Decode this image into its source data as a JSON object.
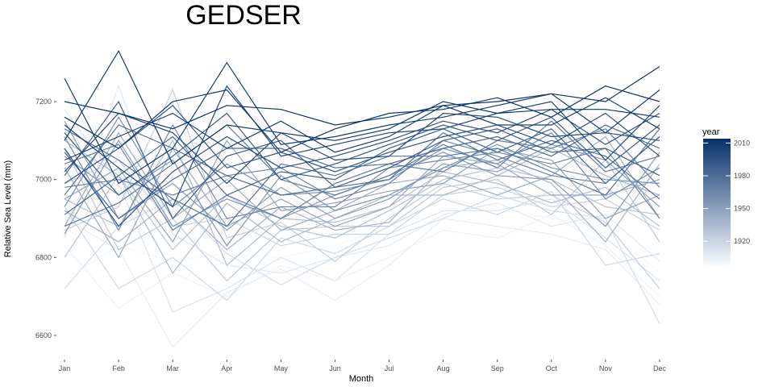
{
  "chart_data": {
    "type": "line",
    "title": "GEDSER",
    "xlabel": "Month",
    "ylabel": "Relative Sea Level (mm)",
    "categories": [
      "Jan",
      "Feb",
      "Mar",
      "Apr",
      "May",
      "Jun",
      "Jul",
      "Aug",
      "Sep",
      "Oct",
      "Nov",
      "Dec"
    ],
    "y_ticks": [
      6600,
      6800,
      7000,
      7200
    ],
    "y_tick_labels": [
      "6600",
      "6800",
      "7000",
      "7200"
    ],
    "ylim": [
      6550,
      7360
    ],
    "grid": false,
    "color_by": "year",
    "legend": {
      "title": "year",
      "position": "right",
      "type": "colorbar",
      "ticks": [
        1920,
        1950,
        1980,
        2010
      ],
      "tick_labels": [
        "1920",
        "1950",
        "1980",
        "2010"
      ],
      "range": [
        1898,
        2014
      ],
      "low_color": "#f7fbff",
      "high_color": "#08306b"
    },
    "series": [
      {
        "year": 1900,
        "values": [
          6745,
          6830,
          6790,
          6810,
          6800,
          6830,
          6880,
          6950,
          6930,
          6900,
          6880,
          6760
        ]
      },
      {
        "year": 1903,
        "values": [
          6830,
          6670,
          6760,
          6700,
          6780,
          6740,
          6800,
          6870,
          6850,
          6910,
          6830,
          6700
        ]
      },
      {
        "year": 1906,
        "values": [
          6900,
          6820,
          6570,
          6710,
          6770,
          6690,
          6780,
          6900,
          6880,
          6860,
          6820,
          6680
        ]
      },
      {
        "year": 1909,
        "values": [
          6850,
          7240,
          6860,
          6780,
          6760,
          6800,
          6830,
          6910,
          6940,
          6880,
          6910,
          6790
        ]
      },
      {
        "year": 1912,
        "values": [
          7180,
          6990,
          6660,
          6720,
          6800,
          6740,
          6860,
          6920,
          6920,
          6950,
          6850,
          6740
        ]
      },
      {
        "year": 1915,
        "values": [
          6720,
          6880,
          6950,
          6810,
          6730,
          6800,
          6850,
          6900,
          6960,
          6920,
          6900,
          6630
        ]
      },
      {
        "year": 1918,
        "values": [
          6930,
          6720,
          6800,
          6690,
          6850,
          6810,
          6880,
          6950,
          6910,
          6970,
          6780,
          6810
        ]
      },
      {
        "year": 1921,
        "values": [
          6990,
          7050,
          6880,
          6900,
          6830,
          6860,
          6860,
          6960,
          6980,
          6930,
          6950,
          6870
        ]
      },
      {
        "year": 1924,
        "values": [
          6870,
          6930,
          7230,
          6850,
          6890,
          6790,
          6900,
          6990,
          6950,
          6960,
          6890,
          6720
        ]
      },
      {
        "year": 1927,
        "values": [
          7080,
          6820,
          6900,
          6740,
          6870,
          6880,
          6880,
          6980,
          7000,
          6910,
          7050,
          6840
        ]
      },
      {
        "year": 1930,
        "values": [
          6800,
          7010,
          6820,
          6960,
          6880,
          6850,
          6920,
          7000,
          7030,
          7000,
          6930,
          6910
        ]
      },
      {
        "year": 1933,
        "values": [
          6950,
          6880,
          7100,
          6780,
          6900,
          6890,
          6930,
          7020,
          6990,
          6940,
          6980,
          6880
        ]
      },
      {
        "year": 1936,
        "values": [
          7100,
          7010,
          6760,
          6940,
          6840,
          6900,
          6960,
          6960,
          7010,
          7080,
          7010,
          6960
        ]
      },
      {
        "year": 1939,
        "values": [
          6920,
          6840,
          6950,
          6820,
          6930,
          6870,
          6890,
          7030,
          7050,
          6990,
          6840,
          7040
        ]
      },
      {
        "year": 1942,
        "values": [
          6880,
          7120,
          6900,
          7000,
          6870,
          6920,
          6990,
          7010,
          6960,
          7010,
          7110,
          6900
        ]
      },
      {
        "year": 1945,
        "values": [
          7030,
          6800,
          7080,
          6880,
          6950,
          6880,
          6930,
          7060,
          7040,
          6960,
          6960,
          7000
        ]
      },
      {
        "year": 1948,
        "values": [
          6950,
          7030,
          6840,
          7100,
          6920,
          6940,
          6970,
          6990,
          7080,
          7050,
          6900,
          6960
        ]
      },
      {
        "year": 1951,
        "values": [
          7150,
          6900,
          6990,
          6870,
          6980,
          6900,
          6950,
          7040,
          7020,
          7090,
          7050,
          6930
        ]
      },
      {
        "year": 1954,
        "values": [
          6860,
          7100,
          6880,
          6950,
          6900,
          6960,
          7010,
          7070,
          7010,
          7000,
          6880,
          7070
        ]
      },
      {
        "year": 1957,
        "values": [
          7060,
          6960,
          7050,
          6830,
          7010,
          6920,
          6960,
          7030,
          7090,
          7030,
          7000,
          6990
        ]
      },
      {
        "year": 1960,
        "values": [
          6930,
          7160,
          6930,
          7040,
          6960,
          6970,
          7000,
          7080,
          7040,
          7120,
          6950,
          7030
        ]
      },
      {
        "year": 1963,
        "values": [
          7110,
          6870,
          7140,
          6900,
          6930,
          6930,
          7030,
          7050,
          7070,
          7040,
          7080,
          6900
        ]
      },
      {
        "year": 1966,
        "values": [
          6980,
          7000,
          6960,
          7010,
          7030,
          6950,
          6990,
          7100,
          7060,
          7010,
          6990,
          7110
        ]
      },
      {
        "year": 1969,
        "values": [
          7040,
          7090,
          6870,
          6960,
          6900,
          6990,
          7040,
          7020,
          7100,
          7080,
          7130,
          6980
        ]
      },
      {
        "year": 1972,
        "values": [
          6880,
          6940,
          7040,
          7140,
          7000,
          6960,
          7010,
          7090,
          7030,
          7150,
          7020,
          7060
        ]
      },
      {
        "year": 1975,
        "values": [
          7130,
          7050,
          6950,
          6880,
          7040,
          7010,
          7060,
          7060,
          7080,
          7020,
          6960,
          7130
        ]
      },
      {
        "year": 1978,
        "values": [
          6960,
          7140,
          7080,
          7010,
          6960,
          6980,
          7000,
          7120,
          7050,
          7100,
          7060,
          6950
        ]
      },
      {
        "year": 1981,
        "values": [
          7070,
          6900,
          7000,
          7080,
          7080,
          7030,
          7040,
          7080,
          7110,
          7060,
          7140,
          7080
        ]
      },
      {
        "year": 1984,
        "values": [
          6910,
          7010,
          7110,
          6960,
          7020,
          7000,
          7080,
          7130,
          7070,
          7130,
          6990,
          7110
        ]
      },
      {
        "year": 1987,
        "values": [
          7010,
          7200,
          6900,
          7060,
          7100,
          6980,
          7030,
          7100,
          7130,
          7070,
          7080,
          7010
        ]
      },
      {
        "year": 1990,
        "values": [
          7120,
          6960,
          7060,
          7170,
          7000,
          7040,
          7090,
          7140,
          7100,
          7160,
          7030,
          7140
        ]
      },
      {
        "year": 1993,
        "values": [
          6990,
          7080,
          7190,
          7030,
          7070,
          7020,
          7070,
          7110,
          7140,
          7090,
          7170,
          7060
        ]
      },
      {
        "year": 1996,
        "values": [
          7080,
          6880,
          7020,
          7110,
          7030,
          7060,
          7100,
          7150,
          7120,
          7180,
          7090,
          7170
        ]
      },
      {
        "year": 1999,
        "values": [
          7020,
          7170,
          7120,
          6990,
          7120,
          7050,
          7060,
          7170,
          7160,
          7110,
          7120,
          7100
        ]
      },
      {
        "year": 2002,
        "values": [
          7140,
          7030,
          6930,
          7240,
          7060,
          7090,
          7120,
          7130,
          7170,
          7200,
          7050,
          7190
        ]
      },
      {
        "year": 2005,
        "values": [
          7050,
          7110,
          7170,
          7080,
          7150,
          7070,
          7110,
          7190,
          7140,
          7140,
          7210,
          7130
        ]
      },
      {
        "year": 2007,
        "values": [
          7260,
          6990,
          7080,
          7300,
          7090,
          7110,
          7140,
          7160,
          7190,
          7220,
          7120,
          7230
        ]
      },
      {
        "year": 2009,
        "values": [
          7100,
          7330,
          7040,
          7140,
          7120,
          7100,
          7130,
          7200,
          7170,
          7180,
          7180,
          7160
        ]
      },
      {
        "year": 2011,
        "values": [
          7160,
          7080,
          7200,
          7230,
          7070,
          7130,
          7170,
          7180,
          7210,
          7160,
          7240,
          7200
        ]
      },
      {
        "year": 2013,
        "values": [
          7200,
          7170,
          7130,
          7190,
          7180,
          7140,
          7160,
          7190,
          7200,
          7220,
          7200,
          7290
        ]
      }
    ]
  }
}
